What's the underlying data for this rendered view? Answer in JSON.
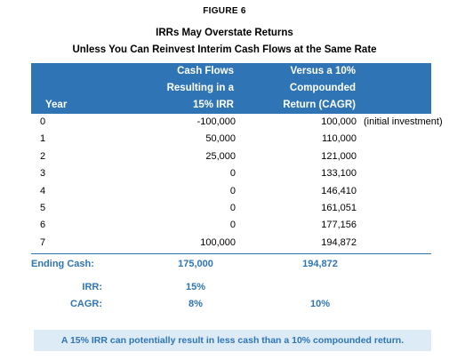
{
  "figure_label": "FIGURE 6",
  "title_line1": "IRRs May Overstate Returns",
  "title_line2": "Unless You Can Reinvest Interim Cash Flows at the Same Rate",
  "chart_data": {
    "type": "table",
    "columns": [
      {
        "key": "year",
        "lines": [
          "Year"
        ]
      },
      {
        "key": "cash_flows",
        "lines": [
          "Cash Flows",
          "Resulting in a",
          "15% IRR"
        ]
      },
      {
        "key": "versus",
        "lines": [
          "Versus a 10%",
          "Compounded",
          "Return (CAGR)"
        ]
      }
    ],
    "rows": [
      {
        "year": "0",
        "cash_flows": "-100,000",
        "versus": "100,000",
        "note": "(initial investment)"
      },
      {
        "year": "1",
        "cash_flows": "50,000",
        "versus": "110,000",
        "note": ""
      },
      {
        "year": "2",
        "cash_flows": "25,000",
        "versus": "121,000",
        "note": ""
      },
      {
        "year": "3",
        "cash_flows": "0",
        "versus": "133,100",
        "note": ""
      },
      {
        "year": "4",
        "cash_flows": "0",
        "versus": "146,410",
        "note": ""
      },
      {
        "year": "5",
        "cash_flows": "0",
        "versus": "161,051",
        "note": ""
      },
      {
        "year": "6",
        "cash_flows": "0",
        "versus": "177,156",
        "note": ""
      },
      {
        "year": "7",
        "cash_flows": "100,000",
        "versus": "194,872",
        "note": ""
      }
    ],
    "summary": [
      {
        "label": "Ending Cash:",
        "cash_flows": "175,000",
        "versus": "194,872",
        "align": "left"
      },
      {
        "label": "IRR:",
        "cash_flows": "15%",
        "versus": "",
        "align": "right"
      },
      {
        "label": "CAGR:",
        "cash_flows": "8%",
        "versus": "10%",
        "align": "right"
      }
    ]
  },
  "footnote": "A 15% IRR can potentially result in less cash than a 10% compounded return.",
  "colors": {
    "header_bg": "#2f75b5",
    "accent_text": "#2f75b5",
    "note_bg": "#ddebf7"
  }
}
